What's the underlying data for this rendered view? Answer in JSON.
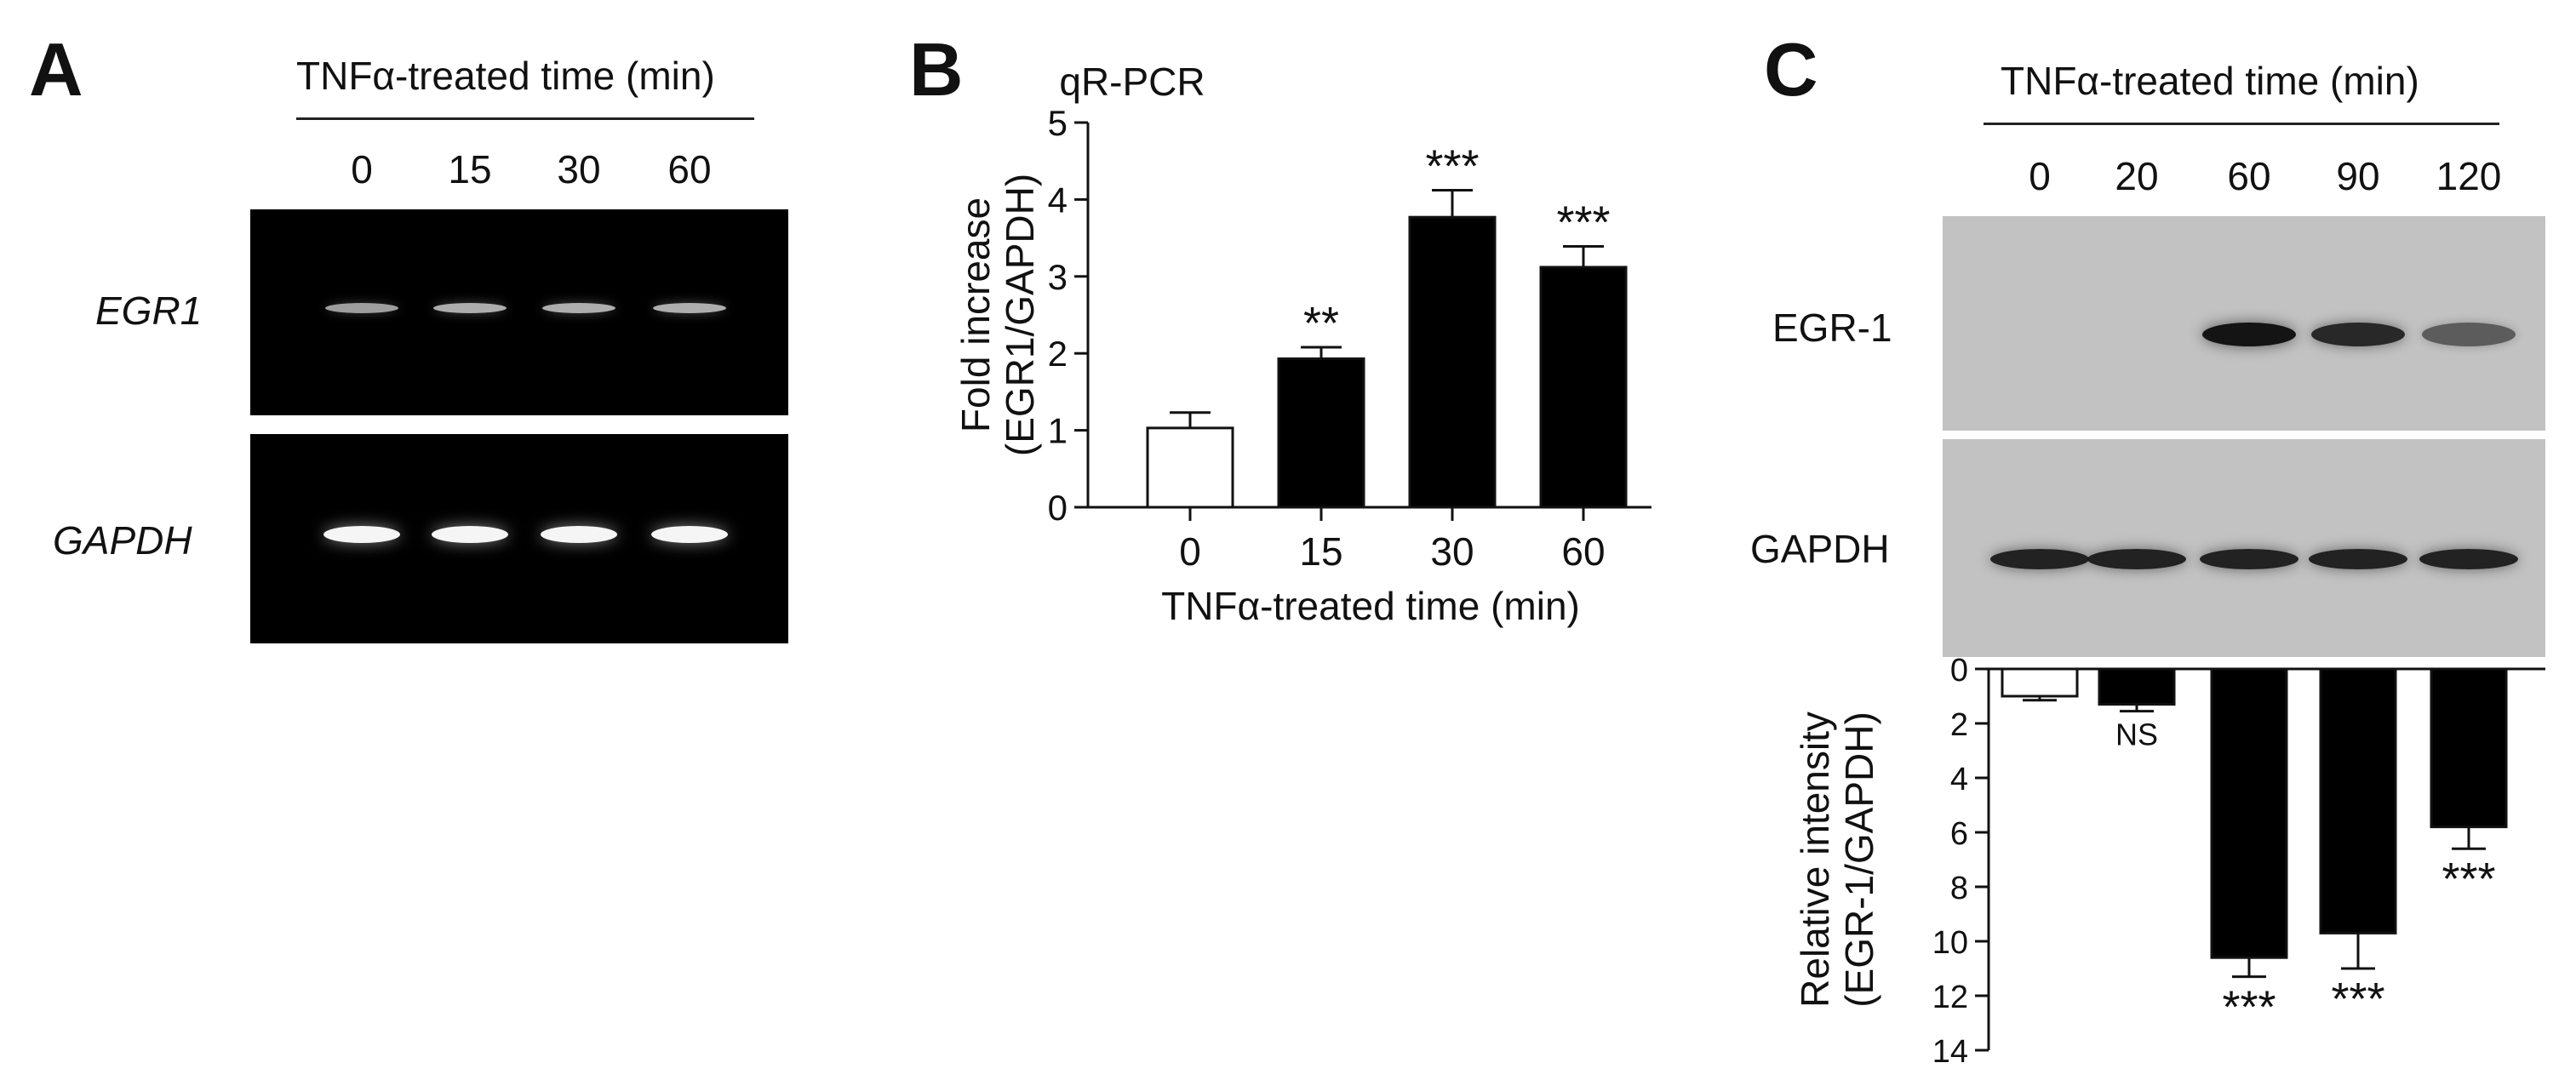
{
  "panel_a": {
    "letter": "A",
    "header": "TNFα-treated time (min)",
    "lanes": [
      "0",
      "15",
      "30",
      "60"
    ],
    "rows": [
      {
        "label": "EGR1",
        "band_intensity": [
          0.45,
          0.55,
          0.55,
          0.55
        ]
      },
      {
        "label": "GAPDH",
        "band_intensity": [
          1.0,
          1.0,
          1.0,
          1.0
        ]
      }
    ]
  },
  "panel_c": {
    "letter": "C",
    "header": "TNFα-treated time (min)",
    "lanes": [
      "0",
      "20",
      "60",
      "90",
      "120"
    ],
    "rows": [
      {
        "label": "EGR-1",
        "band_intensity": [
          0.0,
          0.0,
          1.0,
          0.85,
          0.45
        ]
      },
      {
        "label": "GAPDH",
        "band_intensity": [
          0.9,
          0.9,
          0.9,
          0.9,
          0.9
        ]
      }
    ]
  },
  "chart_data": [
    {
      "panel": "B",
      "type": "bar",
      "title": "qR-PCR",
      "xlabel": "TNFα-treated time (min)",
      "ylabel_line1": "Fold increase",
      "ylabel_line2": "(EGR1/GAPDH)",
      "categories": [
        "0",
        "15",
        "30",
        "60"
      ],
      "values": [
        1.03,
        1.93,
        3.77,
        3.12
      ],
      "errors": [
        0.2,
        0.15,
        0.35,
        0.27
      ],
      "bar_colors": [
        "#ffffff",
        "#000000",
        "#000000",
        "#000000"
      ],
      "annotations": [
        "",
        "**",
        "***",
        "***"
      ],
      "ylim": [
        0,
        5
      ],
      "yticks": [
        "0",
        "1",
        "2",
        "3",
        "4",
        "5"
      ],
      "grid": false
    },
    {
      "panel": "C",
      "type": "bar",
      "inverted_y": true,
      "ylabel_line1": "Relative intensity",
      "ylabel_line2": "(EGR-1/GAPDH)",
      "categories": [
        "0",
        "20",
        "60",
        "90",
        "120"
      ],
      "values": [
        1.0,
        1.3,
        10.6,
        9.7,
        5.8
      ],
      "errors": [
        0.15,
        0.25,
        0.7,
        1.3,
        0.8
      ],
      "bar_colors": [
        "#ffffff",
        "#000000",
        "#000000",
        "#000000",
        "#000000"
      ],
      "annotations": [
        "",
        "NS",
        "***",
        "***",
        "***"
      ],
      "ylim": [
        0,
        14
      ],
      "yticks": [
        "0",
        "2",
        "4",
        "6",
        "8",
        "10",
        "12",
        "14"
      ],
      "grid": false
    }
  ]
}
